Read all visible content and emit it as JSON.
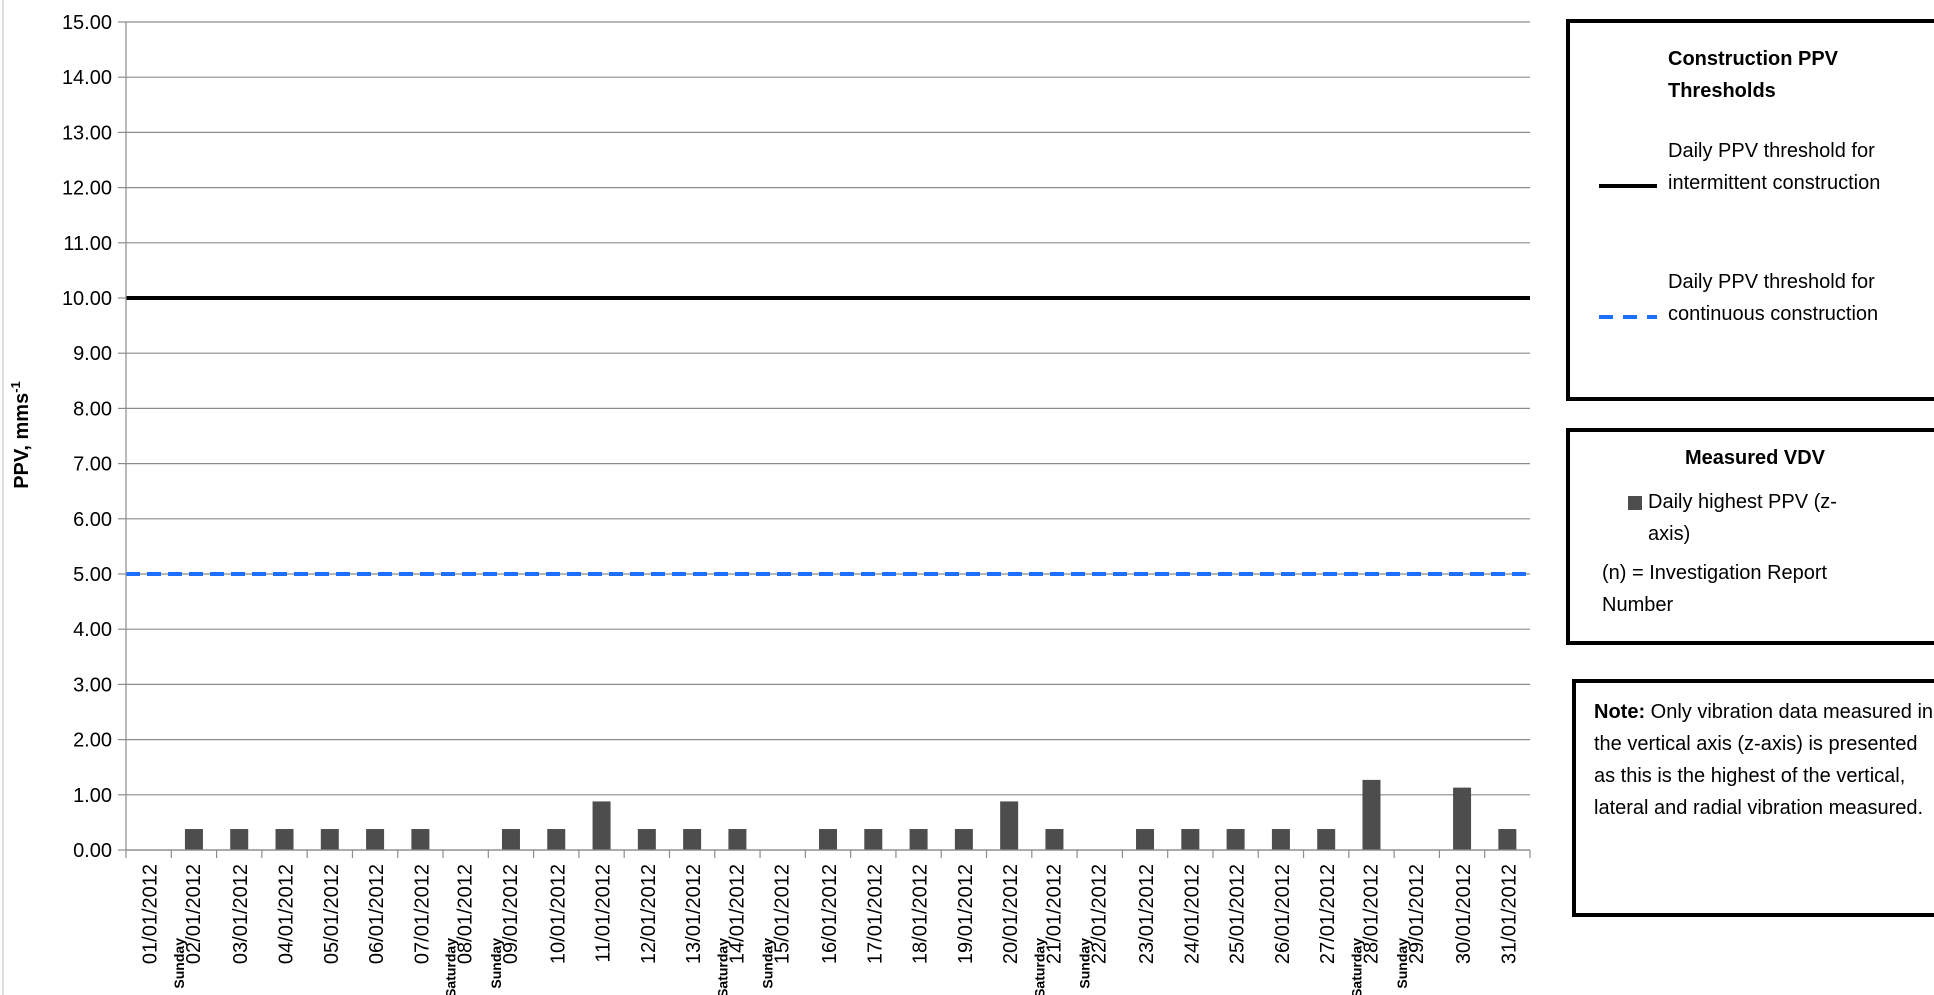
{
  "chart_data": {
    "type": "bar",
    "title": "",
    "ylabel": "PPV, mms",
    "ylabel_superscript": "-1",
    "ylim": [
      0,
      15
    ],
    "yticks": [
      "0.00",
      "1.00",
      "2.00",
      "3.00",
      "4.00",
      "5.00",
      "6.00",
      "7.00",
      "8.00",
      "9.00",
      "10.00",
      "11.00",
      "12.00",
      "13.00",
      "14.00",
      "15.00"
    ],
    "grid": true,
    "categories": [
      "01/01/2012",
      "02/01/2012",
      "03/01/2012",
      "04/01/2012",
      "05/01/2012",
      "06/01/2012",
      "07/01/2012",
      "08/01/2012",
      "09/01/2012",
      "10/01/2012",
      "11/01/2012",
      "12/01/2012",
      "13/01/2012",
      "14/01/2012",
      "15/01/2012",
      "16/01/2012",
      "17/01/2012",
      "18/01/2012",
      "19/01/2012",
      "20/01/2012",
      "21/01/2012",
      "22/01/2012",
      "23/01/2012",
      "24/01/2012",
      "25/01/2012",
      "26/01/2012",
      "27/01/2012",
      "28/01/2012",
      "29/01/2012",
      "30/01/2012",
      "31/01/2012"
    ],
    "day_labels": [
      "",
      "Sunday",
      "",
      "",
      "",
      "",
      "",
      "Saturday",
      "Sunday",
      "",
      "",
      "",
      "",
      "Saturday",
      "Sunday",
      "",
      "",
      "",
      "",
      "",
      "Saturday",
      "Sunday",
      "",
      "",
      "",
      "",
      "",
      "Saturday",
      "Sunday",
      "",
      ""
    ],
    "series": [
      {
        "name": "Daily highest PPV (z-axis)",
        "color": "#4d4d4d",
        "values": [
          0,
          0.38,
          0.38,
          0.38,
          0.38,
          0.38,
          0.38,
          0,
          0.38,
          0.38,
          0.88,
          0.38,
          0.38,
          0.38,
          0,
          0.38,
          0.38,
          0.38,
          0.38,
          0.88,
          0.38,
          0,
          0.38,
          0.38,
          0.38,
          0.38,
          0.38,
          1.27,
          0,
          1.13,
          0.38
        ]
      }
    ],
    "thresholds": [
      {
        "name": "Daily PPV threshold for intermittent construction",
        "value": 10,
        "color": "#000000",
        "style": "solid"
      },
      {
        "name": "Daily PPV threshold for continuous construction",
        "value": 5,
        "color": "#1f6fff",
        "style": "dashed"
      }
    ],
    "legend_placement": "right"
  },
  "legend_thresholds": {
    "title": "Construction PPV Thresholds",
    "items": [
      {
        "label": "Daily PPV threshold for intermittent construction",
        "color": "#000000",
        "style": "solid"
      },
      {
        "label": "Daily PPV threshold for continuous construction",
        "color": "#1f6fff",
        "style": "dashed"
      }
    ]
  },
  "legend_measured": {
    "title": "Measured VDV",
    "item_label": "Daily highest PPV (z-axis)",
    "item_color": "#4d4d4d",
    "note": "(n) = Investigation Report Number"
  },
  "note_box": {
    "bold": "Note:",
    "text": "Only vibration data measured in the vertical axis (z-axis) is presented as this is the highest of the vertical, lateral and radial vibration measured."
  }
}
